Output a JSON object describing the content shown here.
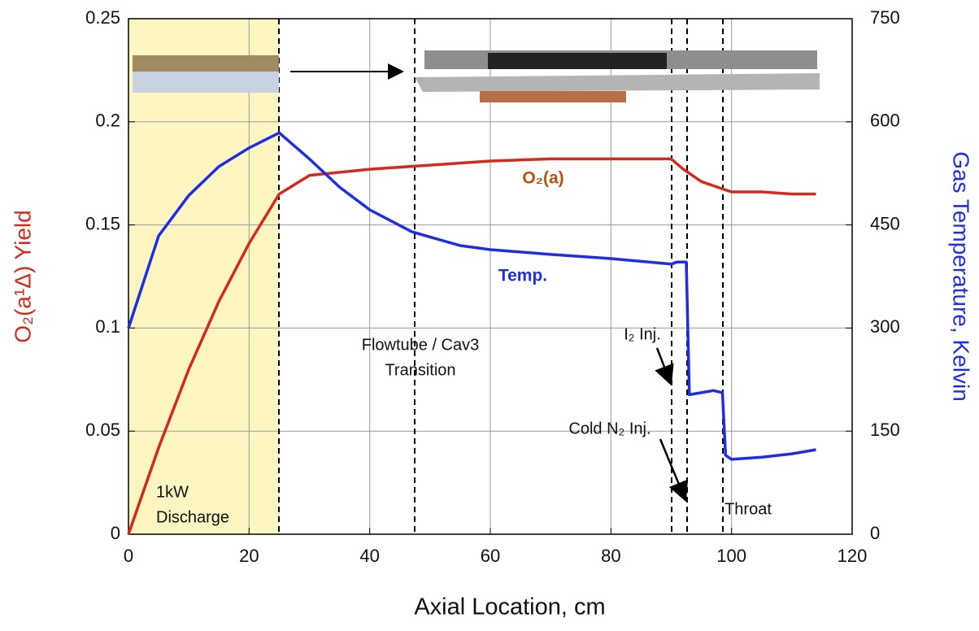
{
  "chart_data": {
    "type": "line",
    "xlabel": "Axial Location, cm",
    "ylabel": "O₂(a¹Δ) Yield",
    "y2label": "Gas Temperature, Kelvin",
    "xlim": [
      0,
      120
    ],
    "xticks": [
      0,
      20,
      40,
      60,
      80,
      100,
      120
    ],
    "ylim": [
      0,
      0.25
    ],
    "yticks": [
      0,
      0.05,
      0.1,
      0.15,
      0.2,
      0.25
    ],
    "y2lim": [
      0,
      750
    ],
    "y2ticks": [
      0,
      150,
      300,
      450,
      600,
      750
    ],
    "grid": true,
    "series": [
      {
        "name": "O₂(a)",
        "color": "#d42a1e",
        "label_color": "#b5530f",
        "x": [
          0,
          5,
          10,
          15,
          20,
          25,
          30,
          40,
          50,
          60,
          70,
          80,
          90,
          92,
          95,
          98,
          100,
          105,
          110,
          114
        ],
        "values": [
          0,
          0.042,
          0.08,
          0.113,
          0.141,
          0.165,
          0.174,
          0.177,
          0.179,
          0.181,
          0.182,
          0.182,
          0.182,
          0.177,
          0.171,
          0.168,
          0.166,
          0.166,
          0.165,
          0.165
        ]
      },
      {
        "name": "Temp.",
        "color": "#1f2ee0",
        "label_color": "#1f2ee0",
        "axis": "y2",
        "x": [
          0,
          5,
          10,
          15,
          20,
          25,
          30,
          35,
          40,
          47,
          55,
          60,
          70,
          80,
          90,
          91,
          92.5,
          93,
          95,
          97,
          98.5,
          99,
          100,
          105,
          110,
          114
        ],
        "values": [
          300,
          434,
          493,
          535,
          562,
          584,
          546,
          505,
          472,
          440,
          420,
          414,
          407,
          401,
          393,
          396,
          396,
          203,
          206,
          209,
          206,
          115,
          109,
          112,
          117,
          123
        ]
      }
    ],
    "annotations": [
      {
        "lines": [
          "1kW",
          "Discharge"
        ]
      },
      {
        "lines": [
          "Flowtube / Cav3",
          "Transition"
        ]
      },
      {
        "lines": [
          "I₂ Inj."
        ]
      },
      {
        "lines": [
          "Cold N₂ Inj."
        ]
      },
      {
        "lines": [
          "Throat"
        ]
      }
    ]
  }
}
